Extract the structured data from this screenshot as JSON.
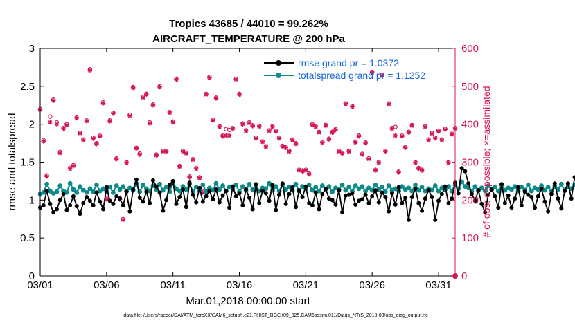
{
  "chart_data": {
    "type": "line",
    "title": "Tropics 43685 / 44010 = 99.262%",
    "subtitle": "AIRCRAFT_TEMPERATURE @ 200 hPa",
    "xlabel": "Mar.01,2018 00:00:00 start",
    "ylabel": "rmse and totalspread",
    "y2label": "# of obs: o=possible; ×=assimilated",
    "x_tick_labels": [
      "03/01",
      "03/06",
      "03/11",
      "03/16",
      "03/21",
      "03/26",
      "03/31"
    ],
    "x_tick_values": [
      0,
      5,
      10,
      15,
      20,
      25,
      30
    ],
    "xlim": [
      0,
      31.25
    ],
    "ylim": [
      0,
      3
    ],
    "y_ticks": [
      "0",
      "0.5",
      "1",
      "1.5",
      "2",
      "2.5",
      "3"
    ],
    "y2lim": [
      0,
      600
    ],
    "y2_ticks": [
      "0",
      "100",
      "200",
      "300",
      "400",
      "500",
      "600"
    ],
    "step_days": 0.25,
    "legend": [
      "rmse grand pr = 1.0372",
      "totalspread grand pr = 1.1252"
    ],
    "series": [
      {
        "name": "rmse",
        "color": "#000000",
        "values": [
          0.9,
          0.93,
          1.12,
          0.95,
          0.84,
          0.88,
          1.0,
          1.08,
          0.87,
          0.93,
          1.05,
          0.92,
          0.82,
          0.96,
          1.04,
          0.99,
          0.93,
          1.1,
          0.98,
          0.88,
          1.17,
          0.99,
          0.95,
          1.05,
          1.02,
          0.93,
          1.11,
          0.85,
          1.14,
          1.27,
          1.03,
          0.98,
          1.11,
          0.96,
          1.26,
          1.18,
          1.1,
          0.86,
          1.0,
          1.2,
          1.25,
          0.95,
          1.04,
          1.14,
          0.91,
          1.23,
          1.07,
          0.97,
          1.16,
          0.98,
          1.05,
          1.12,
          1.01,
          1.14,
          0.97,
          1.06,
          1.12,
          0.9,
          1.18,
          1.05,
          1.09,
          0.93,
          1.14,
          1.03,
          0.88,
          1.21,
          0.96,
          1.12,
          1.09,
          0.99,
          1.2,
          0.87,
          1.07,
          1.22,
          0.95,
          1.08,
          1.17,
          0.91,
          1.13,
          1.04,
          1.18,
          0.96,
          0.93,
          1.1,
          0.88,
          1.08,
          1.15,
          1.02,
          1.0,
          0.94,
          1.13,
          0.84,
          1.06,
          1.07,
          1.09,
          0.94,
          0.99,
          1.01,
          1.07,
          0.96,
          1.05,
          1.13,
          0.97,
          1.1,
          1.04,
          0.85,
          1.09,
          0.94,
          1.17,
          0.96,
          1.03,
          0.74,
          1.04,
          1.15,
          0.96,
          0.86,
          1.02,
          1.13,
          1.04,
          0.74,
          0.99,
          1.08,
          1.18,
          0.96,
          1.02,
          1.23,
          1.09,
          1.42,
          1.38,
          1.22,
          1.08,
          0.99,
          1.13,
          0.95,
          0.84,
          1.07,
          1.14,
          1.05,
          0.9,
          1.21,
          0.96,
          1.06,
          0.9,
          1.02,
          1.17,
          0.93,
          1.11,
          1.07,
          1.04,
          0.9,
          1.05,
          1.15,
          0.98,
          0.85,
          1.08,
          1.22,
          1.02,
          0.89,
          1.12,
          1.22,
          1.02,
          1.3,
          1.36,
          1.17,
          0.93,
          1.14,
          1.04,
          0.9,
          1.2,
          1.06,
          0.96,
          1.13,
          1.24,
          0.84,
          1.1,
          1.05,
          1.22,
          0.92,
          0.82,
          1.18,
          1.02,
          0.94,
          1.13,
          0.84,
          1.03,
          1.13,
          0.95,
          1.08,
          1.2,
          1.07,
          0.89,
          1.12,
          0.97,
          1.05,
          1.14,
          0.96,
          0.92,
          1.17,
          0.86,
          0.99,
          1.2,
          1.14
        ]
      },
      {
        "name": "totalspread",
        "color": "#0f8a8a",
        "values": [
          1.08,
          1.1,
          1.21,
          1.12,
          1.09,
          1.11,
          1.19,
          1.12,
          1.1,
          1.22,
          1.14,
          1.1,
          1.18,
          1.13,
          1.1,
          1.15,
          1.11,
          1.2,
          1.12,
          1.15,
          1.11,
          1.17,
          1.1,
          1.19,
          1.14,
          1.18,
          1.12,
          1.16,
          1.13,
          1.22,
          1.11,
          1.2,
          1.15,
          1.12,
          1.19,
          1.14,
          1.21,
          1.13,
          1.17,
          1.11,
          1.23,
          1.15,
          1.12,
          1.18,
          1.14,
          1.21,
          1.12,
          1.17,
          1.13,
          1.2,
          1.11,
          1.16,
          1.13,
          1.22,
          1.14,
          1.19,
          1.12,
          1.17,
          1.15,
          1.2,
          1.11,
          1.18,
          1.13,
          1.21,
          1.14,
          1.19,
          1.12,
          1.16,
          1.15,
          1.22,
          1.13,
          1.18,
          1.12,
          1.2,
          1.14,
          1.17,
          1.13,
          1.21,
          1.12,
          1.18,
          1.15,
          1.2,
          1.13,
          1.17,
          1.12,
          1.19,
          1.14,
          1.18,
          1.11,
          1.16,
          1.14,
          1.2,
          1.13,
          1.17,
          1.12,
          1.19,
          1.15,
          1.18,
          1.12,
          1.16,
          1.13,
          1.2,
          1.14,
          1.17,
          1.11,
          1.19,
          1.13,
          1.15,
          1.12,
          1.18,
          1.14,
          1.16,
          1.12,
          1.2,
          1.13,
          1.17,
          1.12,
          1.15,
          1.13,
          1.19,
          1.12,
          1.16,
          1.14,
          1.18,
          1.12,
          1.2,
          1.15,
          1.24,
          1.18,
          1.16,
          1.12,
          1.18,
          1.13,
          1.16,
          1.12,
          1.19,
          1.14,
          1.17,
          1.12,
          1.2,
          1.13,
          1.16,
          1.14,
          1.18,
          1.12,
          1.17,
          1.13,
          1.2,
          1.12,
          1.16,
          1.14,
          1.19,
          1.13,
          1.17,
          1.12,
          1.18,
          1.14,
          1.21,
          1.13,
          1.17,
          1.15,
          1.2,
          1.13,
          1.18,
          1.12,
          1.16,
          1.14,
          1.21,
          1.13,
          1.17,
          1.12,
          1.19,
          1.14,
          1.18,
          1.12,
          1.16,
          1.13,
          1.2,
          1.14,
          1.17,
          1.12,
          1.19,
          1.13,
          1.16,
          1.14,
          1.2,
          1.12,
          1.18,
          1.15,
          1.17,
          1.12,
          1.2,
          1.13,
          1.16,
          1.14,
          1.2,
          1.13,
          1.18,
          1.15,
          1.21,
          1.16,
          1.17
        ]
      },
      {
        "name": "obs_possible",
        "axis": "right",
        "marker": "o",
        "color": "#d6145a",
        "x": [
          0.0,
          0.25,
          0.5,
          0.75,
          1.0,
          1.25,
          1.5,
          1.75,
          2.0,
          2.25,
          2.5,
          2.75,
          3.0,
          3.25,
          3.5,
          3.75,
          4.0,
          4.25,
          4.5,
          4.75,
          5.0,
          5.25,
          5.5,
          5.75,
          6.0,
          6.25,
          6.5,
          6.75,
          7.0,
          7.25,
          7.5,
          7.75,
          8.0,
          8.25,
          8.5,
          8.75,
          9.0,
          9.25,
          9.5,
          9.75,
          10.0,
          10.25,
          10.5,
          10.75,
          11.0,
          11.25,
          11.5,
          11.75,
          12.0,
          12.25,
          12.5,
          12.75,
          13.0,
          13.25,
          13.5,
          13.75,
          14.0,
          14.25,
          14.5,
          14.75,
          15.0,
          15.25,
          15.5,
          15.75,
          16.0,
          16.25,
          16.5,
          16.75,
          17.0,
          17.25,
          17.5,
          17.75,
          18.0,
          18.25,
          18.5,
          18.75,
          19.0,
          19.25,
          19.5,
          19.75,
          20.0,
          20.25,
          20.5,
          20.75,
          21.0,
          21.25,
          21.5,
          21.75,
          22.0,
          22.25,
          22.5,
          22.75,
          23.0,
          23.25,
          23.5,
          23.75,
          24.0,
          24.25,
          24.5,
          24.75,
          25.0,
          25.25,
          25.5,
          25.75,
          26.0,
          26.25,
          26.5,
          26.75,
          27.0,
          27.25,
          27.5,
          27.75,
          28.0,
          28.25,
          28.5,
          28.75,
          29.0,
          29.25,
          29.5,
          29.75,
          30.0,
          30.25,
          30.5,
          30.75,
          31.0,
          31.25
        ],
        "values": [
          440,
          358,
          265,
          420,
          465,
          405,
          327,
          390,
          400,
          285,
          292,
          418,
          378,
          360,
          410,
          545,
          365,
          350,
          370,
          458,
          205,
          410,
          430,
          310,
          205,
          150,
          300,
          425,
          498,
          338,
          323,
          472,
          480,
          405,
          452,
          320,
          500,
          330,
          330,
          432,
          407,
          520,
          290,
          330,
          325,
          262,
          308,
          285,
          260,
          222,
          480,
          525,
          412,
          470,
          395,
          370,
          387,
          385,
          390,
          520,
          480,
          402,
          384,
          405,
          397,
          365,
          396,
          355,
          342,
          384,
          395,
          383,
          365,
          343,
          340,
          330,
          360,
          350,
          280,
          278,
          280,
          270,
          400,
          395,
          380,
          353,
          398,
          362,
          380,
          387,
          330,
          325,
          455,
          330,
          448,
          354,
          370,
          322,
          352,
          310,
          538,
          280,
          300,
          530,
          330,
          455,
          390,
          393,
          275,
          370,
          340,
          380,
          398,
          300,
          285,
          280,
          395,
          360,
          377,
          365,
          383,
          360,
          388,
          300,
          375,
          390
        ]
      },
      {
        "name": "obs_assimilated",
        "axis": "right",
        "marker": "*",
        "color": "#d6145a",
        "x": [
          0.0,
          0.25,
          0.5,
          0.75,
          1.0,
          1.25,
          1.5,
          1.75,
          2.0,
          2.25,
          2.5,
          2.75,
          3.0,
          3.25,
          3.5,
          3.75,
          4.0,
          4.25,
          4.5,
          4.75,
          5.0,
          5.25,
          5.5,
          5.75,
          6.0,
          6.25,
          6.5,
          6.75,
          7.0,
          7.25,
          7.5,
          7.75,
          8.0,
          8.25,
          8.5,
          8.75,
          9.0,
          9.25,
          9.5,
          9.75,
          10.0,
          10.25,
          10.5,
          10.75,
          11.0,
          11.25,
          11.5,
          11.75,
          12.0,
          12.25,
          12.5,
          12.75,
          13.0,
          13.25,
          13.5,
          13.75,
          14.0,
          14.25,
          14.5,
          14.75,
          15.0,
          15.25,
          15.5,
          15.75,
          16.0,
          16.25,
          16.5,
          16.75,
          17.0,
          17.25,
          17.5,
          17.75,
          18.0,
          18.25,
          18.5,
          18.75,
          19.0,
          19.25,
          19.5,
          19.75,
          20.0,
          20.25,
          20.5,
          20.75,
          21.0,
          21.25,
          21.5,
          21.75,
          22.0,
          22.25,
          22.5,
          22.75,
          23.0,
          23.25,
          23.5,
          23.75,
          24.0,
          24.25,
          24.5,
          24.75,
          25.0,
          25.25,
          25.5,
          25.75,
          26.0,
          26.25,
          26.5,
          26.75,
          27.0,
          27.25,
          27.5,
          27.75,
          28.0,
          28.25,
          28.5,
          28.75,
          29.0,
          29.25,
          29.5,
          29.75,
          30.0,
          30.25,
          30.5,
          30.75,
          31.0,
          31.25
        ],
        "values": [
          438,
          355,
          262,
          405,
          462,
          400,
          324,
          388,
          398,
          282,
          290,
          416,
          376,
          358,
          408,
          542,
          362,
          348,
          368,
          455,
          202,
          408,
          428,
          308,
          202,
          148,
          298,
          422,
          496,
          336,
          320,
          470,
          478,
          402,
          450,
          318,
          498,
          328,
          328,
          430,
          405,
          518,
          288,
          328,
          323,
          260,
          306,
          282,
          258,
          220,
          478,
          522,
          410,
          468,
          393,
          368,
          370,
          370,
          388,
          518,
          478,
          400,
          382,
          403,
          395,
          363,
          394,
          353,
          340,
          382,
          393,
          381,
          363,
          341,
          338,
          328,
          358,
          348,
          278,
          276,
          278,
          268,
          398,
          393,
          378,
          351,
          396,
          360,
          378,
          385,
          328,
          323,
          453,
          328,
          446,
          352,
          368,
          320,
          350,
          308,
          536,
          278,
          298,
          528,
          328,
          453,
          388,
          370,
          273,
          368,
          338,
          378,
          396,
          298,
          283,
          278,
          393,
          358,
          375,
          363,
          381,
          358,
          386,
          298,
          373,
          388
        ]
      }
    ]
  },
  "footer": "data file: /Users/raeder/DAI/ATM_forcXX/CAM6_setup/f.e21.FHIST_BGC.f09_025.CAM6assim.011/Diags_NTrS_2018-03/obs_diag_output.nc"
}
